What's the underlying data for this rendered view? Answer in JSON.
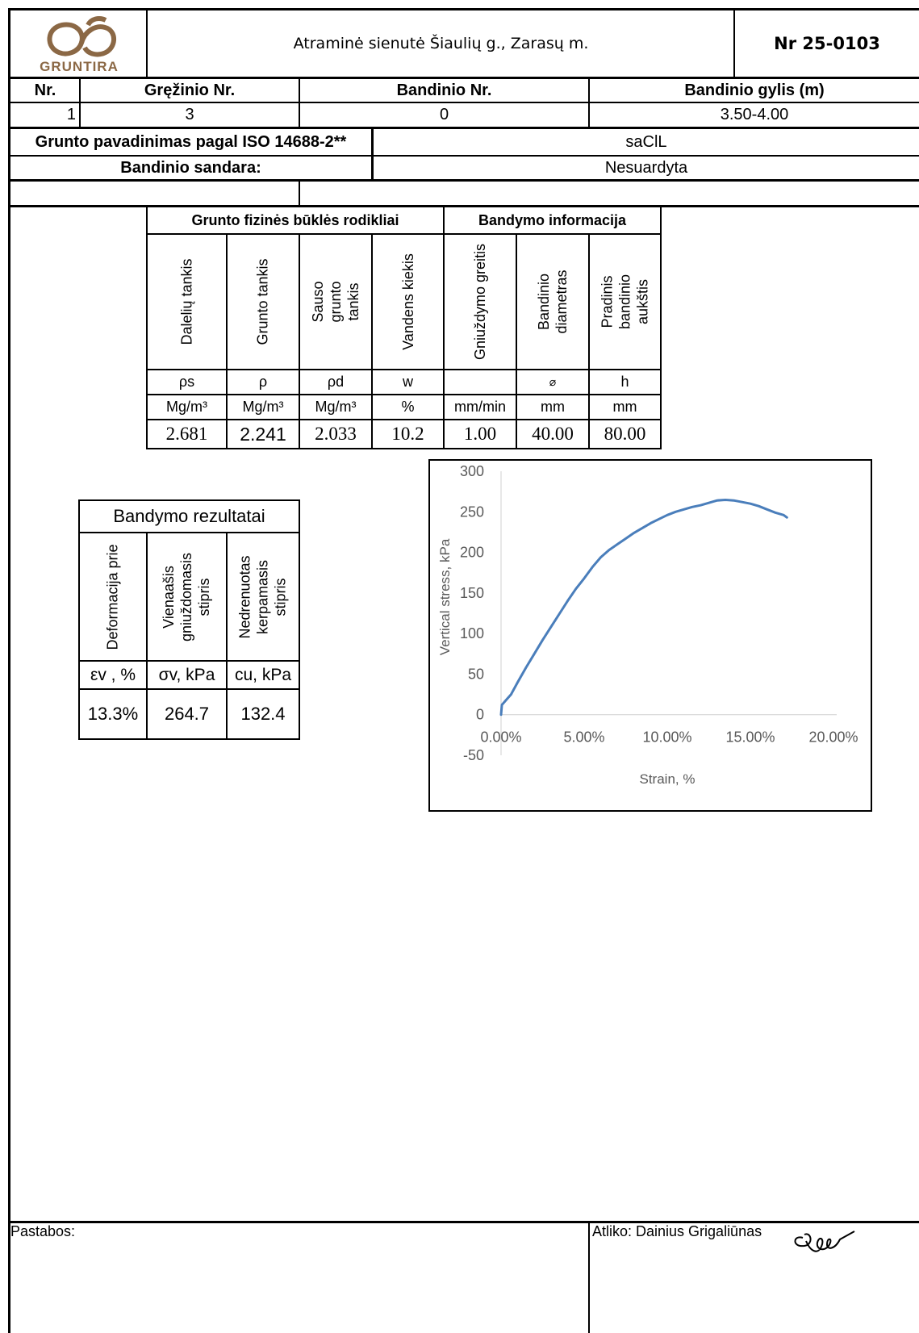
{
  "header": {
    "logo_text": "GRUNTIRA",
    "title": "Atraminė sienutė Šiaulių g., Zarasų m.",
    "report_no": "Nr 25-0103"
  },
  "sample": {
    "headers": [
      "Nr.",
      "Gręžinio Nr.",
      "Bandinio Nr.",
      "Bandinio gylis (m)"
    ],
    "values": [
      "1",
      "3",
      "0",
      "3.50-4.00"
    ],
    "soil_name_label": "Grunto pavadinimas pagal ISO 14688-2**",
    "soil_name_value": "saClL",
    "structure_label": "Bandinio sandara:",
    "structure_value": "Nesuardyta"
  },
  "physical": {
    "group1_title": "Grunto fizinės būklės rodikliai",
    "group2_title": "Bandymo informacija",
    "columns": [
      {
        "name": "Dalelių tankis",
        "symbol": "ρs",
        "unit": "Mg/m³",
        "value": "2.681"
      },
      {
        "name": "Grunto tankis",
        "symbol": "ρ",
        "unit": "Mg/m³",
        "value": "2.241"
      },
      {
        "name": "Sauso grunto tankis",
        "symbol": "ρd",
        "unit": "Mg/m³",
        "value": "2.033"
      },
      {
        "name": "Vandens kiekis",
        "symbol": "w",
        "unit": "%",
        "value": "10.2"
      },
      {
        "name": "Gniuždymo greitis",
        "symbol": "",
        "unit": "mm/min",
        "value": "1.00"
      },
      {
        "name": "Bandinio diametras",
        "symbol": "⌀",
        "unit": "mm",
        "value": "40.00"
      },
      {
        "name": "Pradinis bandinio aukštis",
        "symbol": "h",
        "unit": "mm",
        "value": "80.00"
      }
    ]
  },
  "results": {
    "title": "Bandymo rezultatai",
    "columns": [
      {
        "name": "Deformacija prie",
        "unit": "εv , %",
        "value": "13.3%"
      },
      {
        "name": "Vienaašis gniuždomasis stipris",
        "unit": "σv, kPa",
        "value": "264.7"
      },
      {
        "name": "Nedrenuotas kerpamasis stipris",
        "unit": "cu, kPa",
        "value": "132.4"
      }
    ]
  },
  "chart_data": {
    "type": "line",
    "title": "",
    "xlabel": "Strain, %",
    "ylabel": "Vertical stress, kPa",
    "xlim": [
      0,
      20
    ],
    "ylim": [
      -50,
      300
    ],
    "x_ticks": [
      "0.00%",
      "5.00%",
      "10.00%",
      "15.00%",
      "20.00%"
    ],
    "y_ticks": [
      "300",
      "250",
      "200",
      "150",
      "100",
      "50",
      "0",
      "-50"
    ],
    "grid": false,
    "color": "#4a7ebb",
    "series": [
      {
        "x": [
          0.0,
          0.05,
          0.3,
          0.6,
          1.0,
          1.5,
          2.0,
          2.5,
          3.0,
          3.5,
          4.0,
          4.5,
          5.0,
          5.5,
          6.0,
          6.5,
          7.0,
          7.5,
          8.0,
          8.5,
          9.0,
          9.5,
          10.0,
          10.5,
          11.0,
          11.5,
          12.0,
          12.5,
          13.0,
          13.5,
          14.0,
          14.5,
          15.0,
          15.5,
          16.0,
          16.5,
          17.0,
          17.2
        ],
        "y": [
          0,
          12,
          18,
          25,
          40,
          58,
          75,
          92,
          108,
          124,
          140,
          155,
          168,
          182,
          194,
          203,
          210,
          217,
          224,
          230,
          236,
          241,
          246,
          250,
          253,
          256,
          258,
          261,
          264,
          264.7,
          264,
          262,
          260,
          257,
          253,
          249,
          246,
          243
        ]
      }
    ]
  },
  "footer": {
    "notes_label": "Pastabos:",
    "performed_by": "Atliko: Dainius Grigaliūnas"
  }
}
